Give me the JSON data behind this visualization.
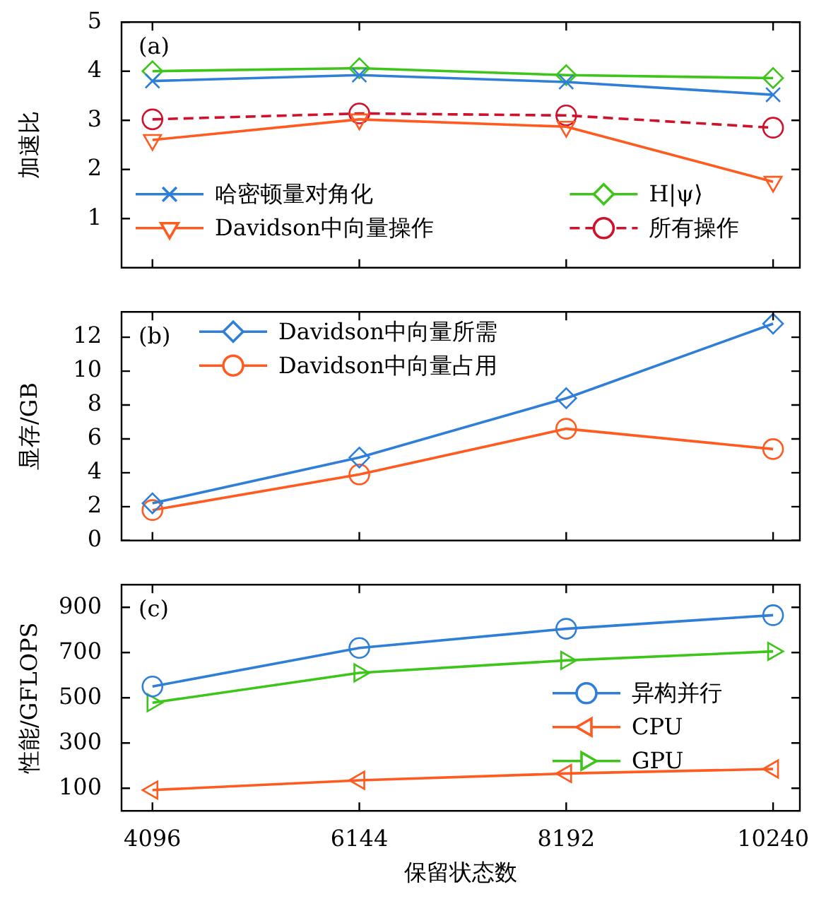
{
  "chart_data": [
    {
      "type": "line",
      "x": [
        4096,
        6144,
        8192,
        10240
      ],
      "xlim": [
        3790,
        10505
      ],
      "xticks": [
        4096,
        6144,
        8192,
        10240
      ],
      "ylim": [
        0,
        5
      ],
      "yticks": [
        1,
        2,
        3,
        4,
        5
      ],
      "ylabel": "加速比",
      "annotations": [
        "(a)"
      ],
      "legend": "bottom",
      "tick_labels": "y",
      "series": [
        {
          "name": "哈密顿量对角化",
          "color": "#2f7ed8",
          "marker": "cross",
          "values": [
            3.8,
            3.92,
            3.78,
            3.52
          ]
        },
        {
          "name": "Davidson中向量操作",
          "color": "#ff5a1f",
          "marker": "triangle-down",
          "values": [
            2.6,
            3.02,
            2.87,
            1.75
          ]
        },
        {
          "name": "H|ψ⟩",
          "color": "#3ec51a",
          "marker": "diamond",
          "values": [
            4.0,
            4.06,
            3.92,
            3.86
          ]
        },
        {
          "name": "所有操作",
          "color": "#d0112b",
          "marker": "circle",
          "line_style": "dashed",
          "values": [
            3.02,
            3.14,
            3.1,
            2.85
          ]
        }
      ]
    },
    {
      "type": "line",
      "x": [
        4096,
        6144,
        8192,
        10240
      ],
      "xlim": [
        3790,
        10505
      ],
      "xticks": [
        4096,
        6144,
        8192,
        10240
      ],
      "ylim": [
        0,
        13.5
      ],
      "yticks": [
        0,
        2,
        4,
        6,
        8,
        10,
        12
      ],
      "ylabel": "显存/GB",
      "annotations": [
        "(b)"
      ],
      "legend": "top left",
      "tick_labels": "y",
      "series": [
        {
          "name": "Davidson中向量所需",
          "color": "#2f7ed8",
          "marker": "diamond",
          "values": [
            2.2,
            4.9,
            8.4,
            12.8
          ]
        },
        {
          "name": "Davidson中向量占用",
          "color": "#ff5a1f",
          "marker": "circle",
          "values": [
            1.8,
            3.9,
            6.6,
            5.4
          ]
        }
      ]
    },
    {
      "type": "line",
      "x": [
        4096,
        6144,
        8192,
        10240
      ],
      "xlim": [
        3790,
        10505
      ],
      "xticks": [
        4096,
        6144,
        8192,
        10240
      ],
      "ylim": [
        0,
        1000
      ],
      "yticks": [
        100,
        300,
        500,
        700,
        900
      ],
      "ylabel": "性能/GFLOPS",
      "xlabel": "保留状态数",
      "annotations": [
        "(c)"
      ],
      "legend": "right",
      "series": [
        {
          "name": "异构并行",
          "color": "#2f7ed8",
          "marker": "circle",
          "values": [
            550,
            720,
            805,
            865
          ]
        },
        {
          "name": "CPU",
          "color": "#ff5a1f",
          "marker": "triangle-left",
          "values": [
            92,
            135,
            165,
            185
          ]
        },
        {
          "name": "GPU",
          "color": "#3ec51a",
          "marker": "triangle-right",
          "values": [
            478,
            610,
            665,
            705
          ]
        }
      ]
    }
  ]
}
